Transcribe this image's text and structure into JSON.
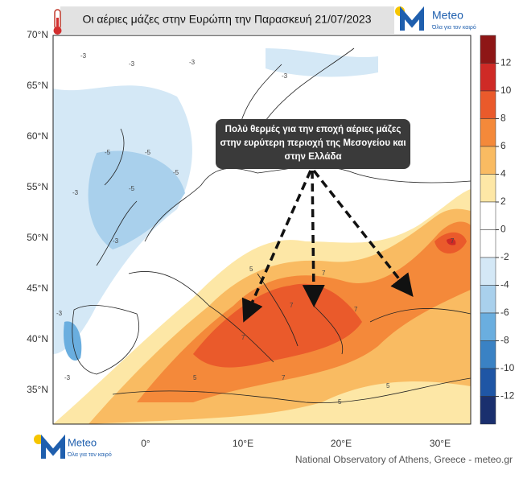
{
  "title": "Οι αέριες μάζες στην Ευρώπη την Παρασκευή 21/07/2023",
  "logo": {
    "name": "Meteo",
    "tagline": "Όλα για τον καιρό"
  },
  "annotation": "Πολύ θερμές για την εποχή αέριες μάζες στην ευρύτερη περιοχή της Μεσογείου και στην Ελλάδα",
  "lat_labels": [
    "70°N",
    "65°N",
    "60°N",
    "55°N",
    "50°N",
    "45°N",
    "40°N",
    "35°N"
  ],
  "lon_labels": [
    "0°",
    "10°E",
    "20°E",
    "30°E"
  ],
  "colorbar": {
    "ticks": [
      12,
      10,
      8,
      6,
      4,
      2,
      0,
      -2,
      -4,
      -6,
      -8,
      -10,
      -12
    ],
    "colors": [
      "#8e1616",
      "#cf2a26",
      "#ea5a2b",
      "#f4893a",
      "#f9bb62",
      "#fde7a6",
      "#ffffff",
      "#ffffff",
      "#d4e8f6",
      "#a9d0ec",
      "#6aaedf",
      "#3a82c4",
      "#1f56a5",
      "#1a2f6e"
    ]
  },
  "contour_labels": [
    -3,
    -3,
    -3,
    -3,
    -5,
    -5,
    -5,
    -3,
    -3,
    -5,
    -3,
    5,
    7,
    7,
    7,
    7,
    5,
    7,
    5,
    7,
    5,
    -3
  ],
  "footer": "National Observatory of Athens, Greece - meteo.gr"
}
